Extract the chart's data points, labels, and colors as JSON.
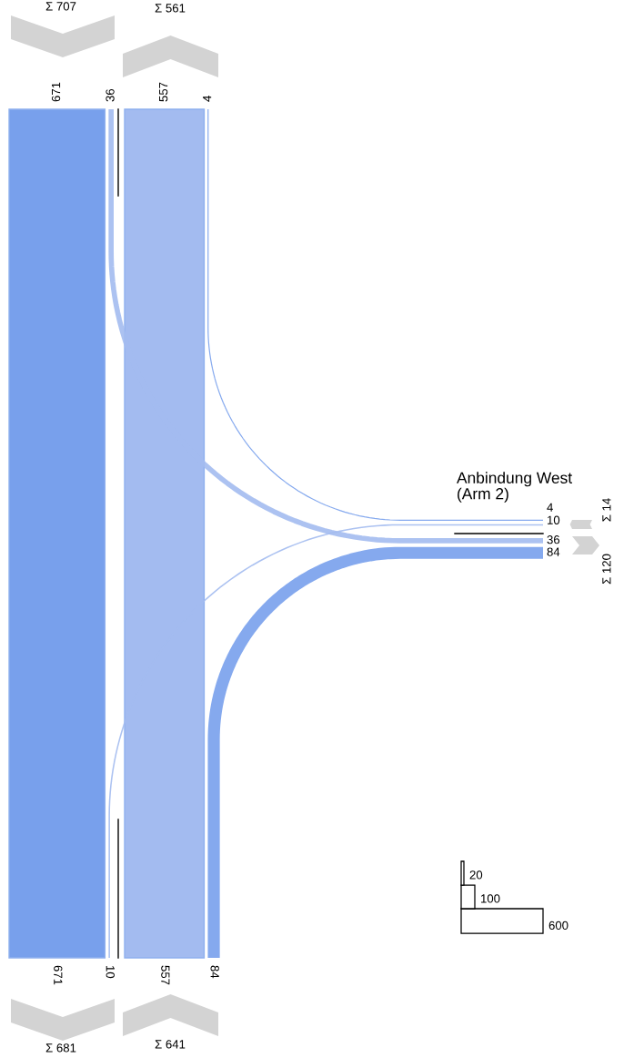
{
  "chart_data": {
    "type": "other",
    "annotations": [
      "Anbindung West\n(Arm 2)",
      "671",
      "36",
      "557",
      "4",
      "10",
      "84",
      "20",
      "100",
      "600"
    ],
    "categories": [
      null,
      null,
      null,
      null,
      null,
      null
    ],
    "values": [
      671,
      36,
      557,
      4,
      10,
      84
    ],
    "colors": [
      "#78a0ec",
      "#a3bbf0",
      "#a3bbf0",
      "#78a0ec",
      "#a3bbf0",
      "#78a0ec"
    ],
    "data_labels": true,
    "totals": [
      "Σ 707",
      "Σ 561",
      "Σ 681",
      "Σ 641",
      "Σ 14",
      "Σ 120"
    ]
  }
}
